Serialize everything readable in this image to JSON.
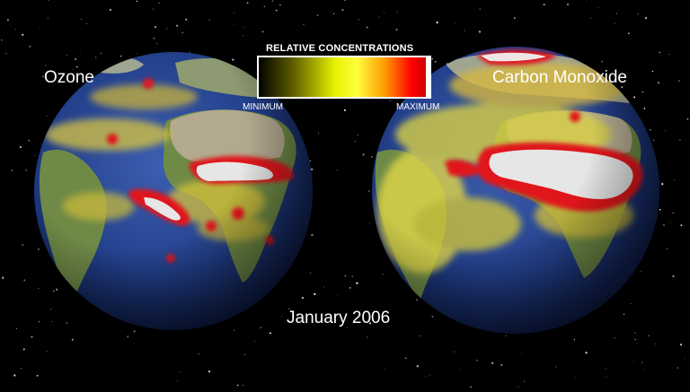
{
  "globes": [
    {
      "label": "Ozone",
      "icon": "globe-icon"
    },
    {
      "label": "Carbon Monoxide",
      "icon": "globe-icon"
    }
  ],
  "legend": {
    "title": "RELATIVE CONCENTRATIONS",
    "min_label": "MINIMUM",
    "max_label": "MAXIMUM",
    "colors": [
      "#000000",
      "#5a5a00",
      "#e6f000",
      "#ffff3c",
      "#ff9600",
      "#ff0000",
      "#c80000"
    ]
  },
  "date": "January 2006",
  "colors": {
    "background": "#000000",
    "ocean": "#23408c",
    "land": "#6f8a47",
    "land_north": "#b3a98f",
    "high_concentration": "#e6e6e6",
    "plume_edge": "#e0141a"
  }
}
